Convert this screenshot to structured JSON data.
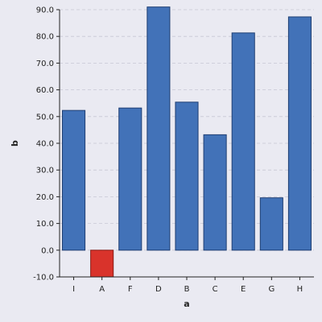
{
  "chart_data": {
    "type": "bar",
    "title": "",
    "xlabel": "a",
    "ylabel": "b",
    "categories": [
      "I",
      "A",
      "F",
      "D",
      "B",
      "C",
      "E",
      "G",
      "H"
    ],
    "values": [
      52.3,
      -10.0,
      53.2,
      91.0,
      55.4,
      43.2,
      81.3,
      19.6,
      87.3
    ],
    "ylim": [
      -10.0,
      90.0
    ],
    "yticks": [
      -10.0,
      0.0,
      10.0,
      20.0,
      30.0,
      40.0,
      50.0,
      60.0,
      70.0,
      80.0,
      90.0
    ],
    "ytick_labels": [
      "-10.0",
      "0.0",
      "10.0",
      "20.0",
      "30.0",
      "40.0",
      "50.0",
      "60.0",
      "70.0",
      "80.0",
      "90.0"
    ],
    "grid": true,
    "colors": {
      "bar": "#4272b8",
      "bar_edge": "#1f3f73",
      "highlight": "#d9332b",
      "highlight_edge": "#8a1c16",
      "highlight_category": "A"
    }
  }
}
